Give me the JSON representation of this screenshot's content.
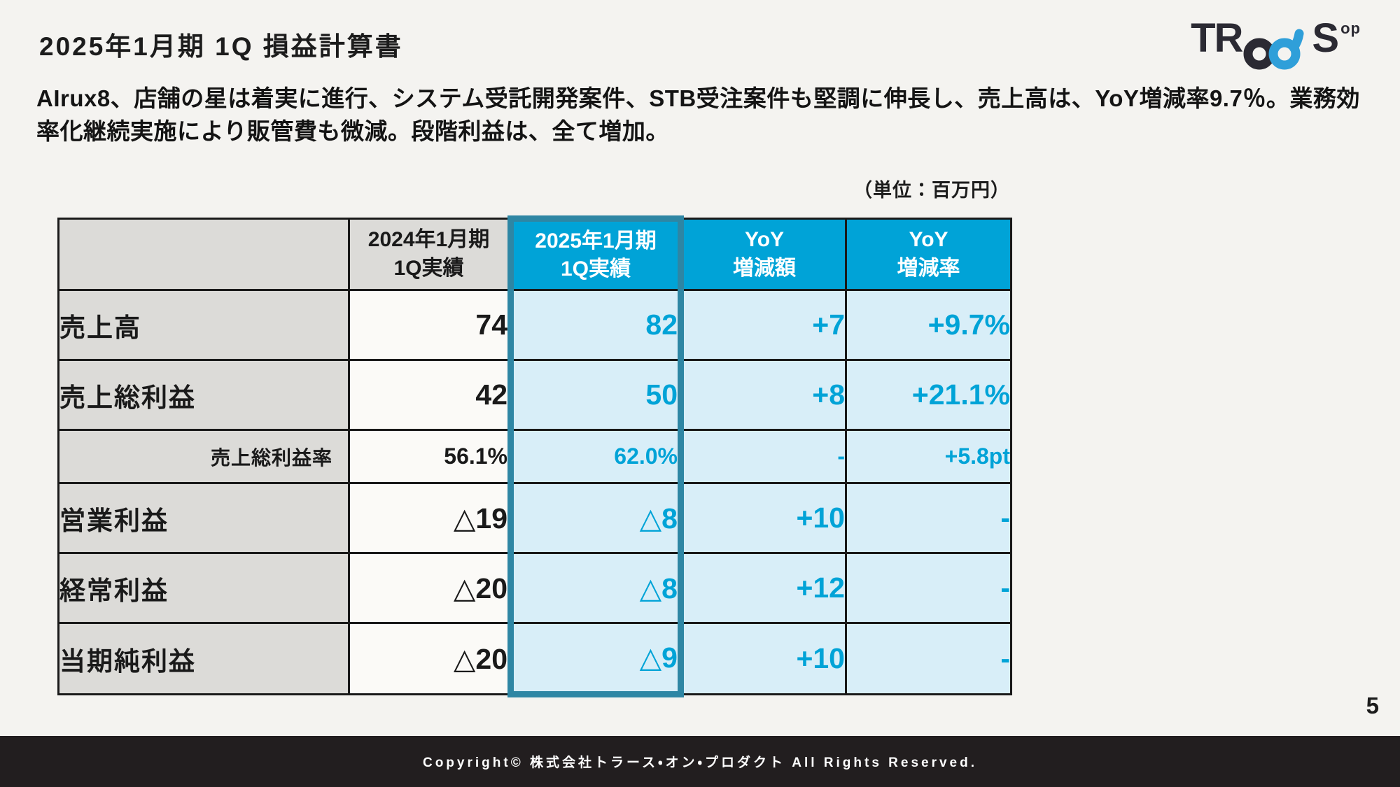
{
  "slide": {
    "title": "2025年1月期 1Q 損益計算書",
    "lead": "AIrux8、店舗の星は着実に進行、システム受託開発案件、STB受注案件も堅調に伸長し、売上高は、YoY増減率9.7％。業務効率化継続実施により販管費も微減。段階利益は、全て増加。",
    "unit_note": "（単位：百万円）",
    "page_number": "5",
    "footer_text": "Copyright© 株式会社トラース・オン・プロダクト All Rights Reserved."
  },
  "logo": {
    "text_left": "TR",
    "text_right": "S",
    "sup": "op",
    "dark_color": "#2b2a33",
    "blue_color": "#2f9fd9"
  },
  "colors": {
    "background": "#f4f3f0",
    "accent_blue": "#00a3d7",
    "light_blue_cell": "#d8eef8",
    "gray_cell": "#dcdbd8",
    "white_cell": "#fbfaf7",
    "teal_highlight_border": "#2e86a4",
    "table_border": "#191919",
    "footer_bar": "#221e1f"
  },
  "table": {
    "highlighted_column_index": 2,
    "headers": [
      [
        ""
      ],
      [
        "2024年1月期",
        "1Q実績"
      ],
      [
        "2025年1月期",
        "1Q実績"
      ],
      [
        "YoY",
        "増減額"
      ],
      [
        "YoY",
        "増減率"
      ]
    ],
    "rows": [
      {
        "label": "売上高",
        "type": "main",
        "values": [
          "74",
          "82",
          "+7",
          "+9.7%"
        ]
      },
      {
        "label": "売上総利益",
        "type": "main",
        "values": [
          "42",
          "50",
          "+8",
          "+21.1%"
        ]
      },
      {
        "label": "売上総利益率",
        "type": "sub",
        "values": [
          "56.1%",
          "62.0%",
          "-",
          "+5.8pt"
        ]
      },
      {
        "label": "営業利益",
        "type": "main",
        "values": [
          "△19",
          "△8",
          "+10",
          "-"
        ]
      },
      {
        "label": "経常利益",
        "type": "main",
        "values": [
          "△20",
          "△8",
          "+12",
          "-"
        ]
      },
      {
        "label": "当期純利益",
        "type": "main",
        "values": [
          "△20",
          "△9",
          "+10",
          "-"
        ]
      }
    ]
  }
}
